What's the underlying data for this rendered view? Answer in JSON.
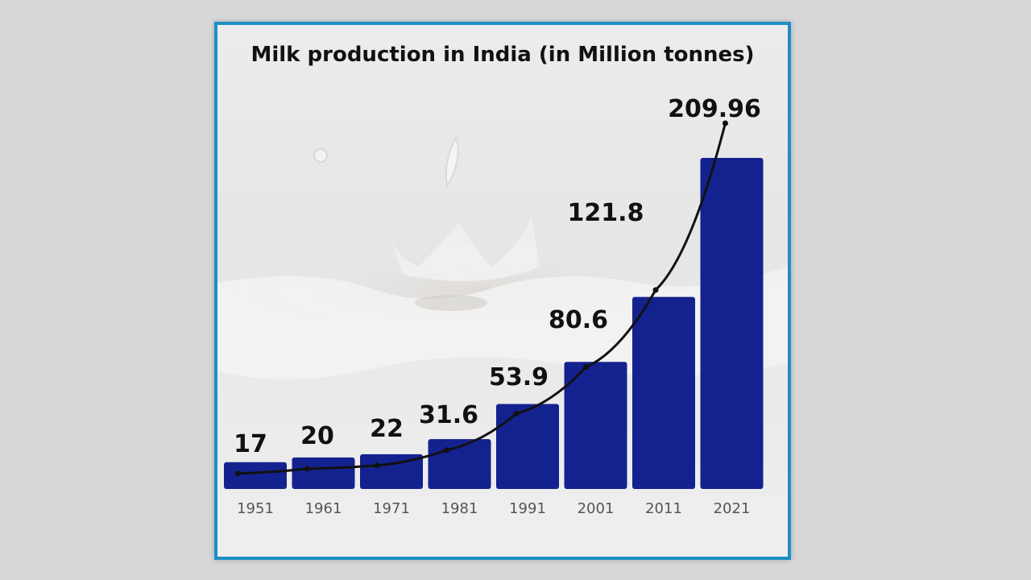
{
  "chart_data": {
    "type": "bar",
    "title": "Milk production in India (in Million tonnes)",
    "categories": [
      "1951",
      "1961",
      "1971",
      "1981",
      "1991",
      "2001",
      "2011",
      "2021"
    ],
    "values": [
      17,
      20,
      22,
      31.6,
      53.9,
      80.6,
      121.8,
      209.96
    ],
    "value_labels": [
      "17",
      "20",
      "22",
      "31.6",
      "53.9",
      "80.6",
      "121.8",
      "209.96"
    ],
    "trend_line": true,
    "grid": false,
    "legend": "none",
    "colors": {
      "bar": "#14228f",
      "line": "#111111",
      "frame": "#1e8fc6"
    }
  }
}
